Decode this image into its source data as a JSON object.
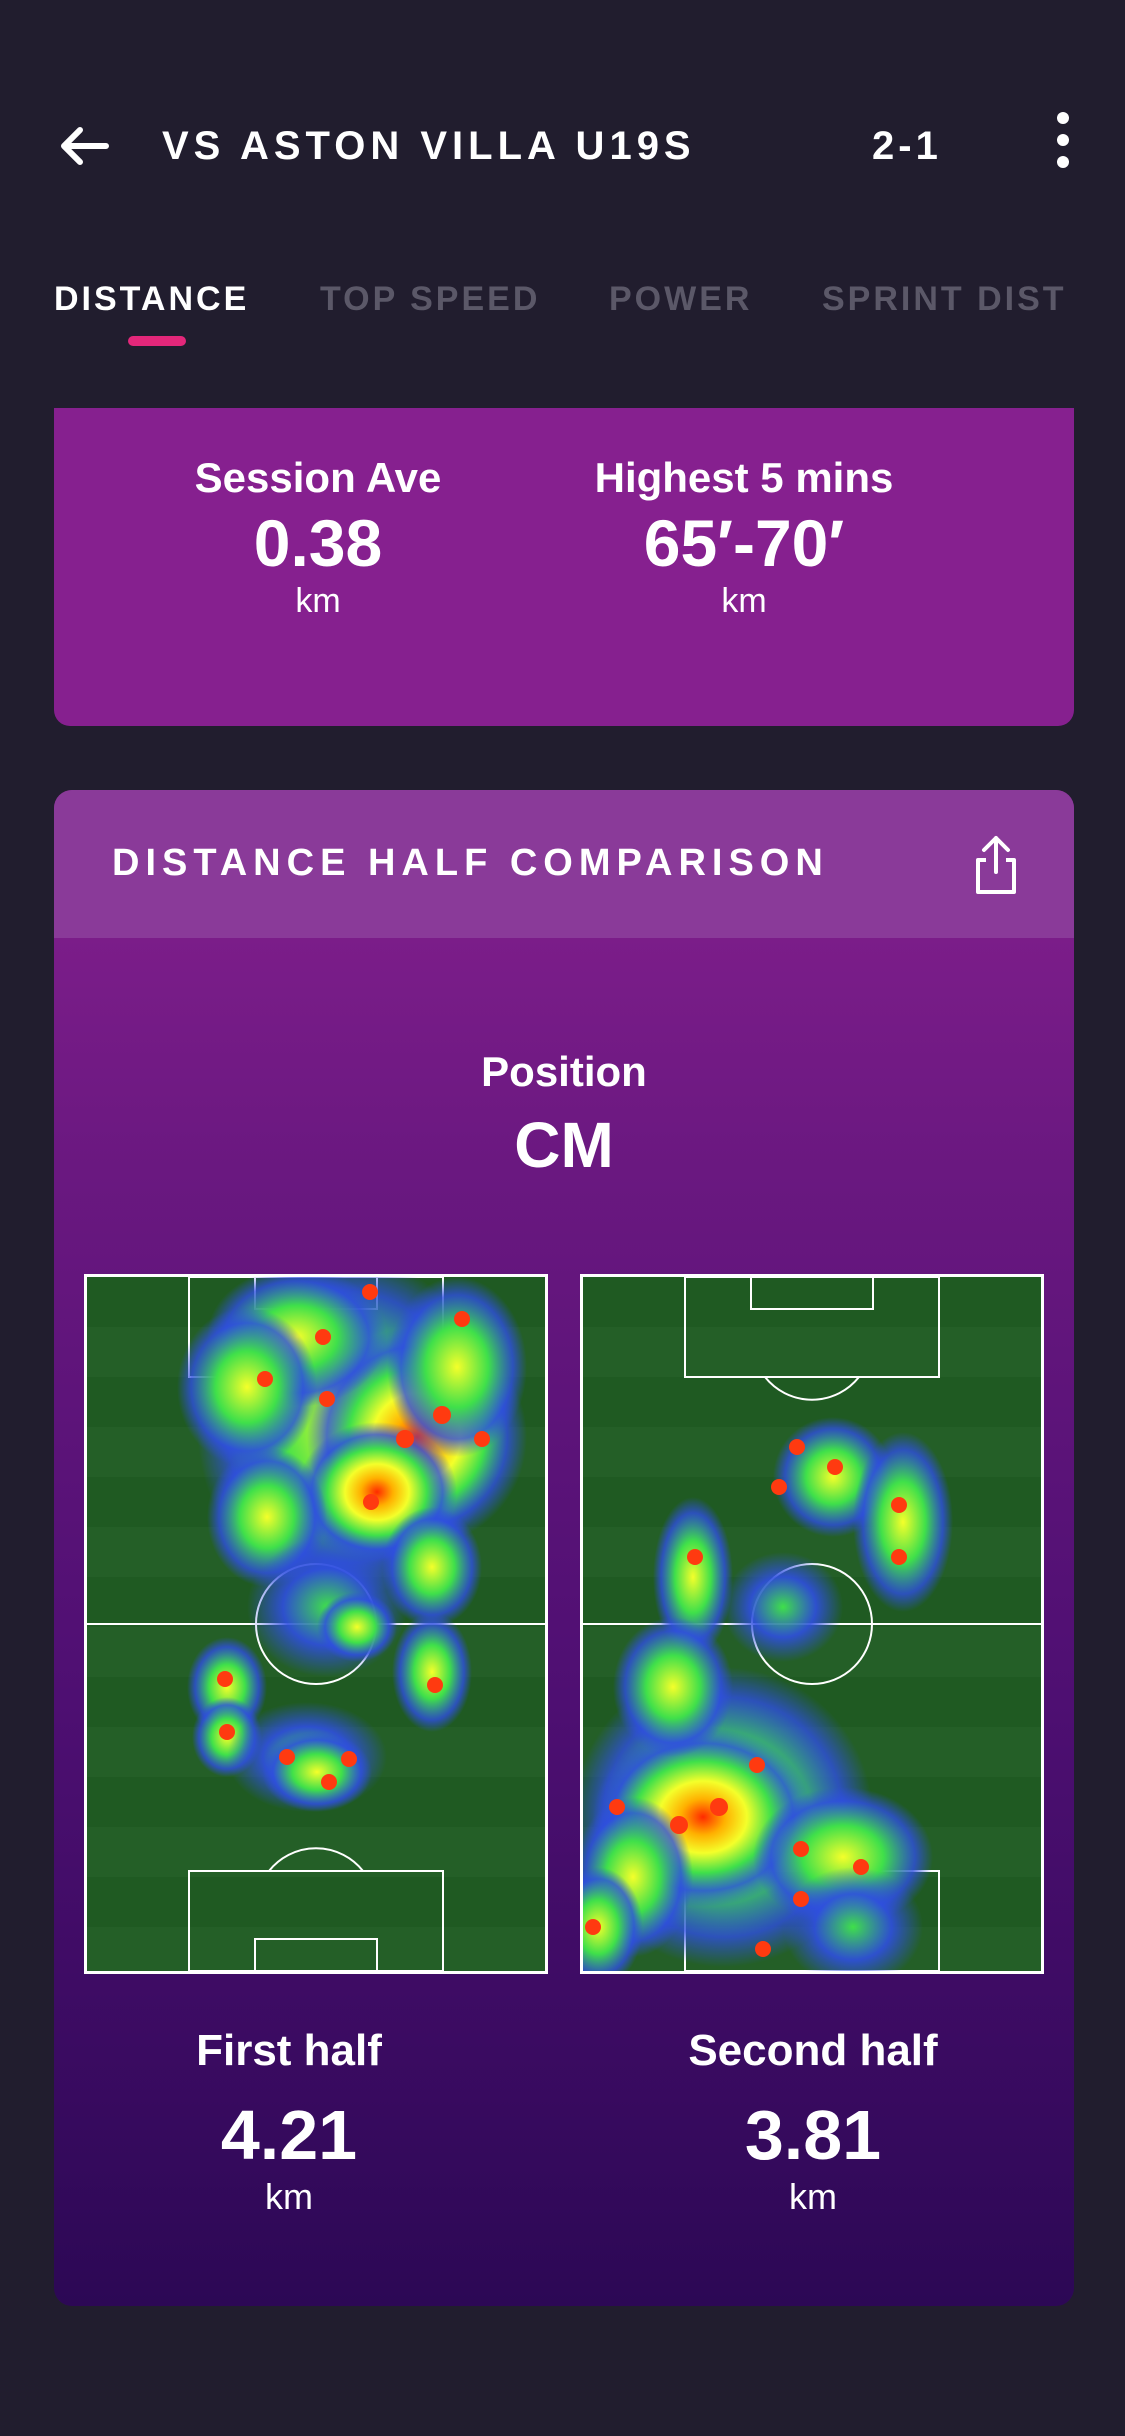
{
  "header": {
    "title": "VS ASTON VILLA U19S",
    "score": "2-1"
  },
  "tabs": [
    {
      "label": "DISTANCE",
      "active": true
    },
    {
      "label": "TOP SPEED",
      "active": false
    },
    {
      "label": "POWER",
      "active": false
    },
    {
      "label": "SPRINT DIST",
      "active": false
    }
  ],
  "summary": {
    "session_ave_label": "Session Ave",
    "session_ave_value": "0.38",
    "session_ave_unit": "km",
    "highest_label": "Highest 5 mins",
    "highest_value": "65′-70′",
    "highest_unit": "km"
  },
  "comparison": {
    "title": "DISTANCE HALF COMPARISON",
    "position_label": "Position",
    "position_value": "CM",
    "first_half_label": "First half",
    "first_half_value": "4.21",
    "first_half_unit": "km",
    "second_half_label": "Second half",
    "second_half_value": "3.81",
    "second_half_unit": "km"
  },
  "icons": {
    "back": "arrow-left-icon",
    "more": "more-vertical-icon",
    "share": "share-icon"
  },
  "colors": {
    "background": "#211d2e",
    "card": "#86208f",
    "card_header": "#8a3a99",
    "tab_indicator": "#e3277a",
    "tab_inactive": "#5b5868"
  }
}
